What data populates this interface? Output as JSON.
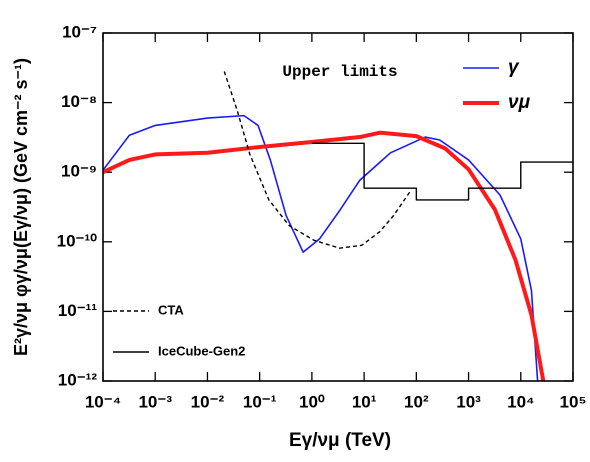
{
  "chart_data": {
    "type": "line",
    "xlabel": "Eγ/νμ (TeV)",
    "ylabel": "E²γ/νμ φγ/νμ(Eγ/νμ) (GeV cm⁻² s⁻¹)",
    "annotation": "Upper limits",
    "xscale": "log",
    "yscale": "log",
    "xlim": [
      0.0001,
      100000
    ],
    "ylim": [
      1e-12,
      1e-07
    ],
    "xticks": [
      {
        "value": 0.0001,
        "label": "10⁻⁴"
      },
      {
        "value": 0.001,
        "label": "10⁻³"
      },
      {
        "value": 0.01,
        "label": "10⁻²"
      },
      {
        "value": 0.1,
        "label": "10⁻¹"
      },
      {
        "value": 1,
        "label": "10⁰"
      },
      {
        "value": 10,
        "label": "10¹"
      },
      {
        "value": 100,
        "label": "10²"
      },
      {
        "value": 1000,
        "label": "10³"
      },
      {
        "value": 10000,
        "label": "10⁴"
      },
      {
        "value": 100000,
        "label": "10⁵"
      }
    ],
    "yticks": [
      {
        "value": 1e-12,
        "label": "10⁻¹²"
      },
      {
        "value": 1e-11,
        "label": "10⁻¹¹"
      },
      {
        "value": 1e-10,
        "label": "10⁻¹⁰"
      },
      {
        "value": 1e-09,
        "label": "10⁻⁹"
      },
      {
        "value": 1e-08,
        "label": "10⁻⁸"
      },
      {
        "value": 1e-07,
        "label": "10⁻⁷"
      }
    ],
    "series": [
      {
        "name": "γ",
        "color": "#1a1aff",
        "width": 1.6,
        "dash": false,
        "x": [
          0.0001,
          0.00032,
          0.001,
          0.01,
          0.05,
          0.093,
          0.16,
          0.32,
          0.68,
          1.4,
          3.5,
          8.3,
          32,
          148,
          280,
          1000,
          4000,
          10000,
          16000,
          21000
        ],
        "values": [
          1.07e-09,
          3.4e-09,
          4.7e-09,
          6e-09,
          6.5e-09,
          4.7e-09,
          1.5e-09,
          2.4e-10,
          7.1e-11,
          1.1e-10,
          2.9e-10,
          7.7e-10,
          1.9e-09,
          3.2e-09,
          2.9e-09,
          1.5e-09,
          4.7e-10,
          1.1e-10,
          2e-11,
          1e-12
        ]
      },
      {
        "name": "νμ",
        "color": "#ff1a1a",
        "width": 4,
        "dash": false,
        "x": [
          0.0001,
          0.00032,
          0.001,
          0.01,
          0.1,
          0.93,
          8.3,
          20,
          100,
          355,
          1000,
          3200,
          7900,
          16000,
          27000
        ],
        "values": [
          1e-09,
          1.5e-09,
          1.8e-09,
          1.9e-09,
          2.3e-09,
          2.7e-09,
          3.2e-09,
          3.7e-09,
          3.3e-09,
          2.2e-09,
          1.1e-09,
          2.9e-10,
          5.5e-11,
          8.9e-12,
          1e-12
        ]
      },
      {
        "name": "CTA",
        "color": "#000000",
        "width": 1.4,
        "dash": true,
        "x": [
          0.021,
          0.037,
          0.065,
          0.15,
          0.37,
          1.1,
          3.4,
          9,
          20,
          37,
          75
        ],
        "values": [
          2.8e-08,
          7.8e-09,
          1.8e-09,
          4e-10,
          1.7e-10,
          1.05e-10,
          8.1e-11,
          8.9e-11,
          1.4e-10,
          2.4e-10,
          5.2e-10
        ]
      },
      {
        "name": "IceCube-Gen2",
        "color": "#000000",
        "width": 1.4,
        "dash": false,
        "bins": [
          1,
          10,
          100,
          1000,
          10000,
          100000
        ],
        "values": [
          2.6e-09,
          5.9e-10,
          4e-10,
          5.9e-10,
          1.4e-09
        ]
      }
    ]
  }
}
